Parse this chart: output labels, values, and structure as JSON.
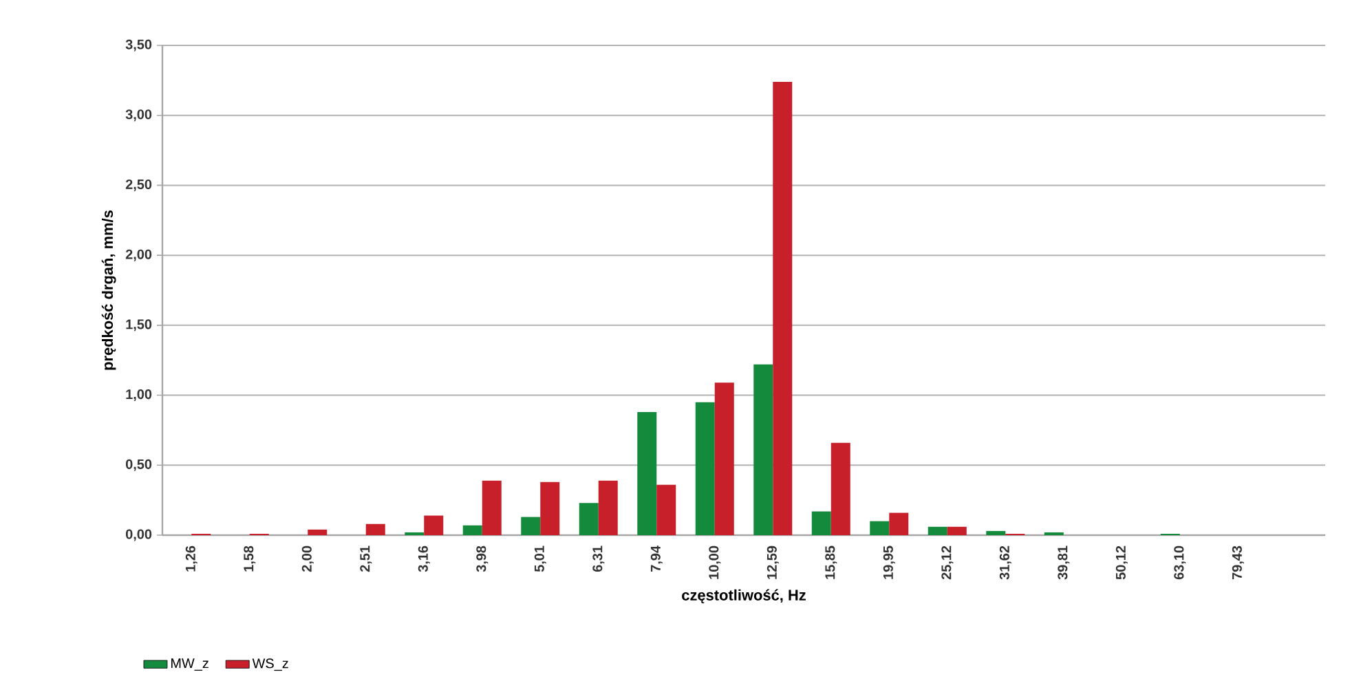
{
  "chart_data": {
    "type": "bar",
    "xlabel": "częstotliwość, Hz",
    "ylabel": "prędkość drgań, mm/s",
    "categories": [
      "1,26",
      "1,58",
      "2,00",
      "2,51",
      "3,16",
      "3,98",
      "5,01",
      "6,31",
      "7,94",
      "10,00",
      "12,59",
      "15,85",
      "19,95",
      "25,12",
      "31,62",
      "39,81",
      "50,12",
      "63,10",
      "79,43",
      null
    ],
    "series": [
      {
        "name": "MW_z",
        "color": "#138a3c",
        "values": [
          0,
          0,
          0,
          0,
          0.02,
          0.07,
          0.13,
          0.23,
          0.88,
          0.95,
          1.22,
          0.17,
          0.1,
          0.06,
          0.03,
          0.02,
          0,
          0.01,
          0,
          0
        ]
      },
      {
        "name": "WS_z",
        "color": "#c8202a",
        "values": [
          0.01,
          0.01,
          0.04,
          0.08,
          0.14,
          0.39,
          0.38,
          0.39,
          0.36,
          1.09,
          3.24,
          0.66,
          0.16,
          0.06,
          0.01,
          0,
          0,
          0,
          0,
          0
        ]
      }
    ],
    "ylim": [
      0,
      3.5
    ],
    "yticks": [
      {
        "value": 0,
        "label": "0,00"
      },
      {
        "value": 0.5,
        "label": "0,50"
      },
      {
        "value": 1,
        "label": "1,00"
      },
      {
        "value": 1.5,
        "label": "1,50"
      },
      {
        "value": 2,
        "label": "2,00"
      },
      {
        "value": 2.5,
        "label": "2,50"
      },
      {
        "value": 3,
        "label": "3,00"
      },
      {
        "value": 3.5,
        "label": "3,50"
      }
    ],
    "grid": "y",
    "legend": "bottom left"
  }
}
